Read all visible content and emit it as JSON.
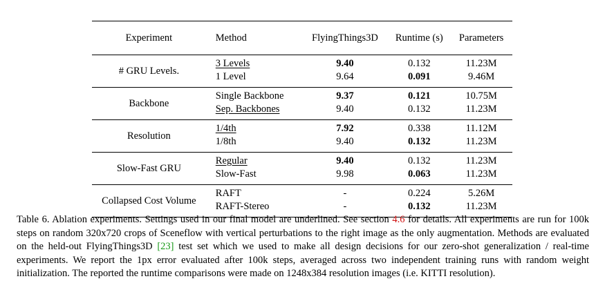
{
  "table": {
    "headers": [
      "Experiment",
      "Method",
      "FlyingThings3D",
      "Runtime (s)",
      "Parameters"
    ],
    "groups": [
      {
        "experiment": "# GRU Levels.",
        "rows": [
          {
            "method": "3 Levels",
            "flyingthings3d": "9.40",
            "runtime": "0.132",
            "parameters": "11.23M",
            "underline": true,
            "bold_ft": true,
            "bold_rt": false
          },
          {
            "method": "1 Level",
            "flyingthings3d": "9.64",
            "runtime": "0.091",
            "parameters": "9.46M",
            "underline": false,
            "bold_ft": false,
            "bold_rt": true
          }
        ]
      },
      {
        "experiment": "Backbone",
        "rows": [
          {
            "method": "Single Backbone",
            "flyingthings3d": "9.37",
            "runtime": "0.121",
            "parameters": "10.75M",
            "underline": false,
            "bold_ft": true,
            "bold_rt": true
          },
          {
            "method": "Sep. Backbones",
            "flyingthings3d": "9.40",
            "runtime": "0.132",
            "parameters": "11.23M",
            "underline": true,
            "bold_ft": false,
            "bold_rt": false
          }
        ]
      },
      {
        "experiment": "Resolution",
        "rows": [
          {
            "method": "1/4th",
            "flyingthings3d": "7.92",
            "runtime": "0.338",
            "parameters": "11.12M",
            "underline": true,
            "bold_ft": true,
            "bold_rt": false
          },
          {
            "method": "1/8th",
            "flyingthings3d": "9.40",
            "runtime": "0.132",
            "parameters": "11.23M",
            "underline": false,
            "bold_ft": false,
            "bold_rt": true
          }
        ]
      },
      {
        "experiment": "Slow-Fast GRU",
        "rows": [
          {
            "method": "Regular",
            "flyingthings3d": "9.40",
            "runtime": "0.132",
            "parameters": "11.23M",
            "underline": true,
            "bold_ft": true,
            "bold_rt": false
          },
          {
            "method": "Slow-Fast",
            "flyingthings3d": "9.98",
            "runtime": "0.063",
            "parameters": "11.23M",
            "underline": false,
            "bold_ft": false,
            "bold_rt": true
          }
        ]
      },
      {
        "experiment": "Collapsed Cost Volume",
        "rows": [
          {
            "method": "RAFT",
            "flyingthings3d": "-",
            "runtime": "0.224",
            "parameters": "5.26M",
            "underline": false,
            "bold_ft": false,
            "bold_rt": false
          },
          {
            "method": "RAFT-Stereo",
            "flyingthings3d": "-",
            "runtime": "0.132",
            "parameters": "11.23M",
            "underline": false,
            "bold_ft": false,
            "bold_rt": true
          }
        ]
      }
    ]
  },
  "caption": {
    "part1": "Table 6. Ablation experiments. Settings used in our final model are underlined. See section ",
    "section_ref": "4.6",
    "part2": " for details. All experiments are run for 100k steps on random 320x720 crops of Sceneflow with vertical perturbations to the right image as the only augmentation. Methods are evaluated on the held-out FlyingThings3D ",
    "citation": "[23]",
    "part3": " test set which we used to make all design decisions for our zero-shot generalization / real-time experiments. We report the 1px error evaluated after 100k steps, averaged across two independent training runs with random weight initialization. The reported the runtime comparisons were made on 1248x384 resolution images (i.e. KITTI resolution)."
  },
  "colors": {
    "section_link": "#d01010",
    "citation_link": "#1a9a1a"
  }
}
